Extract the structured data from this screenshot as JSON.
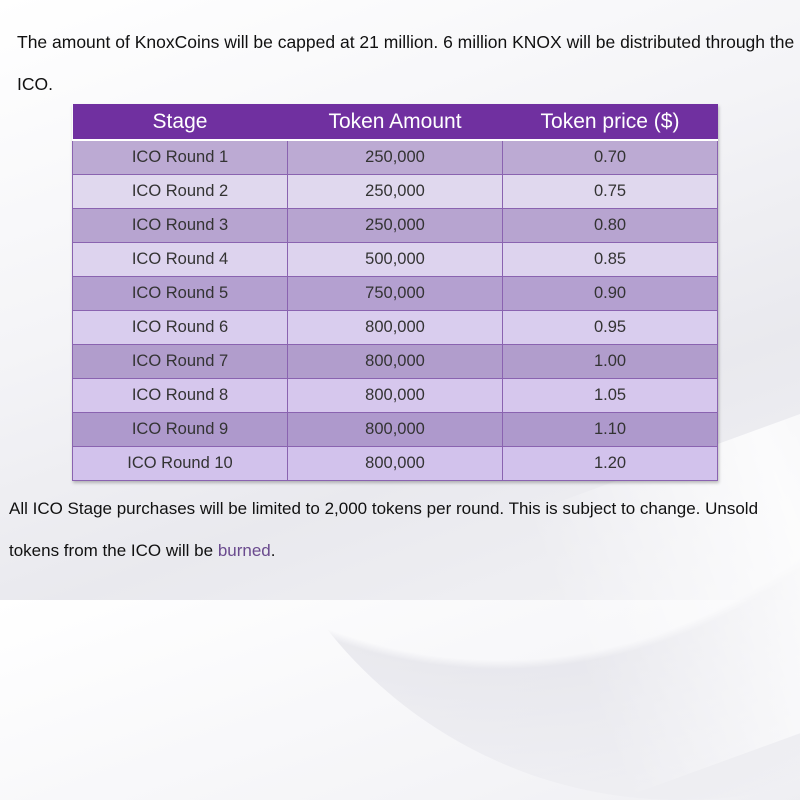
{
  "intro": {
    "text": "The amount of KnoxCoins will be capped at 21 million. 6 million KNOX will be distributed through the ICO."
  },
  "table": {
    "headers": [
      "Stage",
      "Token Amount",
      "Token price ($)"
    ],
    "rows": [
      [
        "ICO Round 1",
        "250,000",
        "0.70"
      ],
      [
        "ICO Round 2",
        "250,000",
        "0.75"
      ],
      [
        "ICO Round 3",
        "250,000",
        "0.80"
      ],
      [
        "ICO Round 4",
        "500,000",
        "0.85"
      ],
      [
        "ICO Round 5",
        "750,000",
        "0.90"
      ],
      [
        "ICO Round 6",
        "800,000",
        "0.95"
      ],
      [
        "ICO Round 7",
        "800,000",
        "1.00"
      ],
      [
        "ICO Round 8",
        "800,000",
        "1.05"
      ],
      [
        "ICO Round 9",
        "800,000",
        "1.10"
      ],
      [
        "ICO Round 10",
        "800,000",
        "1.20"
      ]
    ]
  },
  "outro": {
    "text_before_link": "All ICO Stage purchases will be limited to 2,000 tokens per round. This is subject to change. Unsold tokens from the ICO will be ",
    "link_text": "burned",
    "text_after_link": "."
  },
  "colors": {
    "header_bg": "#7030a0",
    "link": "#6a4a8e",
    "cell_border": "#8a63b0"
  }
}
